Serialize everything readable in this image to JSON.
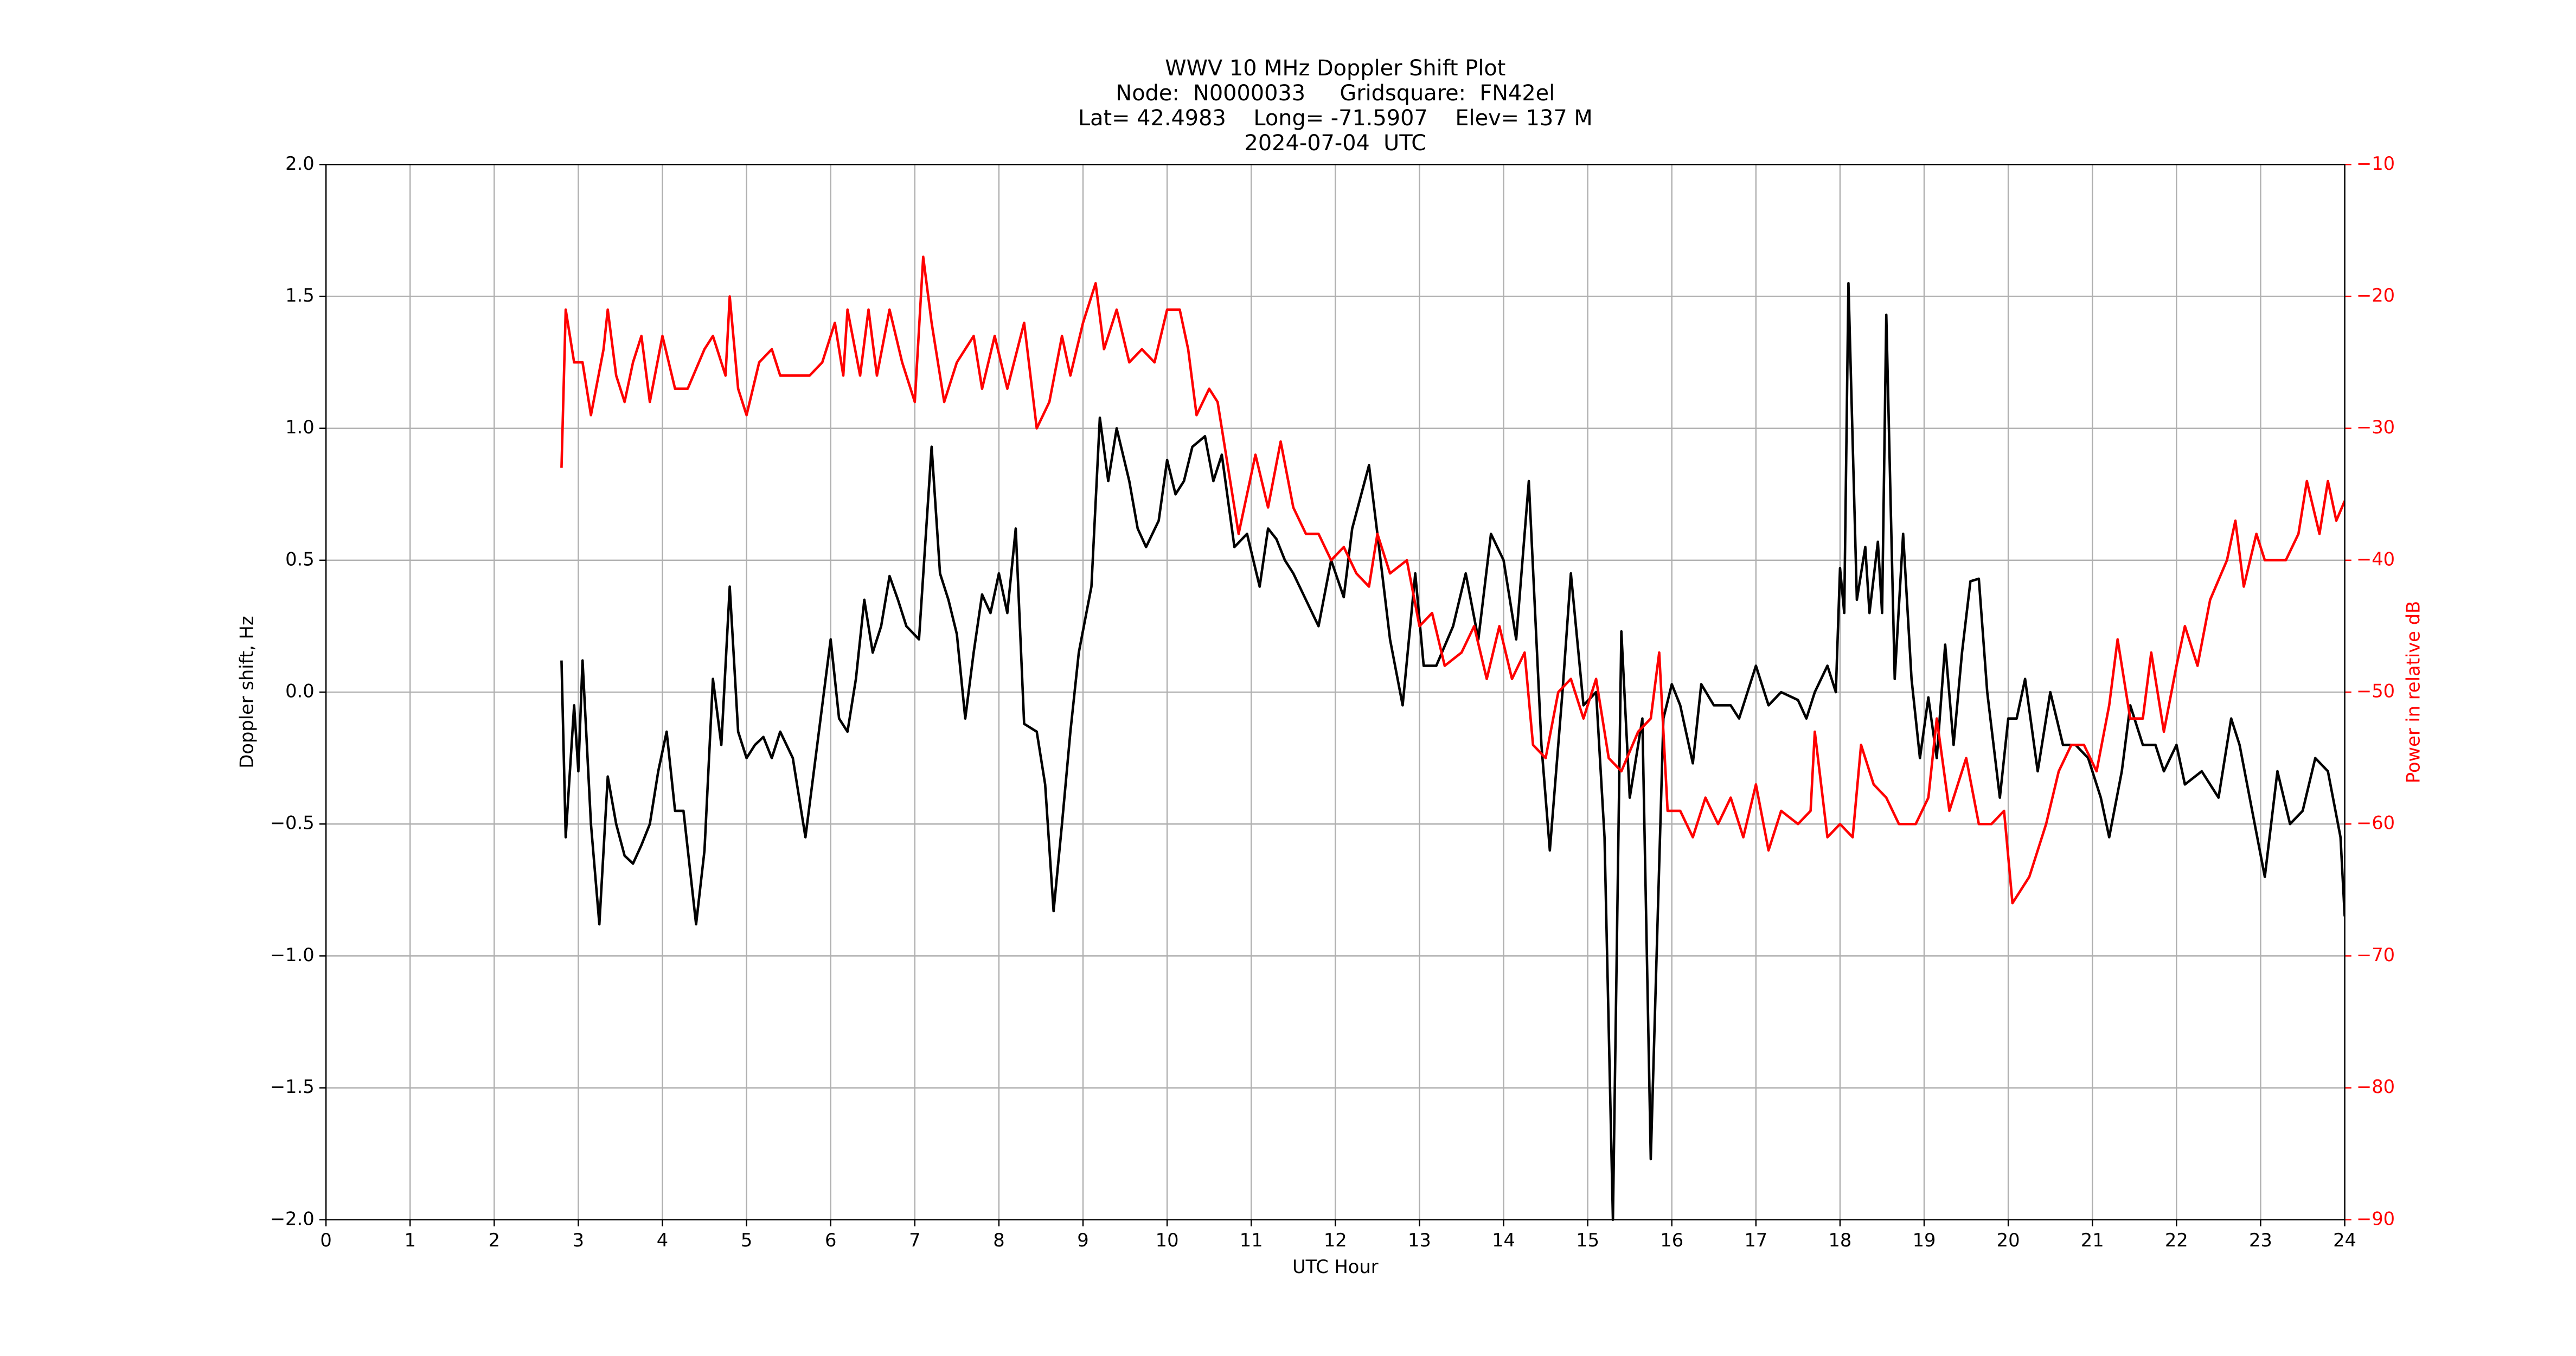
{
  "chart_data": {
    "type": "line",
    "title": [
      "WWV 10 MHz Doppler Shift Plot",
      "Node:  N0000033     Gridsquare:  FN42el",
      "Lat= 42.4983    Long= -71.5907    Elev= 137 M",
      "2024-07-04  UTC"
    ],
    "xlabel": "UTC Hour",
    "ylabel": "Doppler shift, Hz",
    "y2label": "Power in relative dB",
    "y2label_color": "#ff0000",
    "grid": true,
    "xlim": [
      0,
      24
    ],
    "xticks": [
      0,
      1,
      2,
      3,
      4,
      5,
      6,
      7,
      8,
      9,
      10,
      11,
      12,
      13,
      14,
      15,
      16,
      17,
      18,
      19,
      20,
      21,
      22,
      23,
      24
    ],
    "ylim": [
      -2,
      2
    ],
    "yticks": [
      {
        "value": -2,
        "label": "−2.0"
      },
      {
        "value": -1.5,
        "label": "−1.5"
      },
      {
        "value": -1,
        "label": "−1.0"
      },
      {
        "value": -0.5,
        "label": "−0.5"
      },
      {
        "value": 0,
        "label": "0.0"
      },
      {
        "value": 0.5,
        "label": "0.5"
      },
      {
        "value": 1,
        "label": "1.0"
      },
      {
        "value": 1.5,
        "label": "1.5"
      },
      {
        "value": 2,
        "label": "2.0"
      }
    ],
    "y2lim": [
      -90,
      -10
    ],
    "y2ticks": [
      {
        "value": -90,
        "label": "−90"
      },
      {
        "value": -80,
        "label": "−80"
      },
      {
        "value": -70,
        "label": "−70"
      },
      {
        "value": -60,
        "label": "−60"
      },
      {
        "value": -50,
        "label": "−50"
      },
      {
        "value": -40,
        "label": "−40"
      },
      {
        "value": -30,
        "label": "−30"
      },
      {
        "value": -20,
        "label": "−20"
      },
      {
        "value": -10,
        "label": "−10"
      }
    ],
    "series": [
      {
        "color": "#000000",
        "axis": "y",
        "x": [
          2.8,
          2.85,
          2.95,
          3.0,
          3.05,
          3.15,
          3.25,
          3.35,
          3.45,
          3.55,
          3.65,
          3.75,
          3.85,
          3.95,
          4.05,
          4.15,
          4.25,
          4.4,
          4.5,
          4.6,
          4.7,
          4.8,
          4.9,
          5.0,
          5.1,
          5.2,
          5.3,
          5.4,
          5.55,
          5.7,
          5.8,
          6.0,
          6.1,
          6.2,
          6.3,
          6.4,
          6.5,
          6.6,
          6.7,
          6.8,
          6.9,
          7.05,
          7.2,
          7.3,
          7.4,
          7.5,
          7.6,
          7.7,
          7.8,
          7.9,
          8.0,
          8.1,
          8.2,
          8.3,
          8.45,
          8.55,
          8.65,
          8.75,
          8.85,
          8.95,
          9.1,
          9.2,
          9.3,
          9.4,
          9.55,
          9.65,
          9.75,
          9.9,
          10.0,
          10.1,
          10.2,
          10.3,
          10.45,
          10.55,
          10.65,
          10.8,
          10.95,
          11.1,
          11.2,
          11.3,
          11.4,
          11.5,
          11.65,
          11.8,
          11.95,
          12.1,
          12.2,
          12.4,
          12.5,
          12.65,
          12.8,
          12.95,
          13.05,
          13.2,
          13.4,
          13.55,
          13.7,
          13.85,
          14.0,
          14.15,
          14.3,
          14.45,
          14.55,
          14.7,
          14.8,
          14.95,
          15.1,
          15.2,
          15.3,
          15.4,
          15.5,
          15.65,
          15.75,
          15.9,
          16.0,
          16.1,
          16.25,
          16.35,
          16.5,
          16.7,
          16.8,
          16.9,
          17.0,
          17.15,
          17.3,
          17.5,
          17.6,
          17.7,
          17.85,
          17.95,
          18.0,
          18.05,
          18.1,
          18.2,
          18.3,
          18.35,
          18.45,
          18.5,
          18.55,
          18.65,
          18.75,
          18.85,
          18.95,
          19.05,
          19.15,
          19.25,
          19.35,
          19.45,
          19.55,
          19.65,
          19.75,
          19.9,
          20.0,
          20.1,
          20.2,
          20.35,
          20.5,
          20.65,
          20.8,
          20.95,
          21.1,
          21.2,
          21.35,
          21.45,
          21.6,
          21.75,
          21.85,
          22.0,
          22.1,
          22.3,
          22.5,
          22.65,
          22.75,
          22.9,
          23.05,
          23.2,
          23.35,
          23.5,
          23.65,
          23.8,
          23.95,
          24.0
        ],
        "values": [
          0.12,
          -0.55,
          -0.05,
          -0.3,
          0.12,
          -0.5,
          -0.88,
          -0.32,
          -0.5,
          -0.62,
          -0.65,
          -0.58,
          -0.5,
          -0.3,
          -0.15,
          -0.45,
          -0.45,
          -0.88,
          -0.6,
          0.05,
          -0.2,
          0.4,
          -0.15,
          -0.25,
          -0.2,
          -0.17,
          -0.25,
          -0.15,
          -0.25,
          -0.55,
          -0.3,
          0.2,
          -0.1,
          -0.15,
          0.05,
          0.35,
          0.15,
          0.25,
          0.44,
          0.35,
          0.25,
          0.2,
          0.93,
          0.45,
          0.35,
          0.22,
          -0.1,
          0.15,
          0.37,
          0.3,
          0.45,
          0.3,
          0.62,
          -0.12,
          -0.15,
          -0.35,
          -0.83,
          -0.5,
          -0.15,
          0.15,
          0.4,
          1.04,
          0.8,
          1.0,
          0.8,
          0.62,
          0.55,
          0.65,
          0.88,
          0.75,
          0.8,
          0.93,
          0.97,
          0.8,
          0.9,
          0.55,
          0.6,
          0.4,
          0.62,
          0.58,
          0.5,
          0.45,
          0.35,
          0.25,
          0.5,
          0.36,
          0.62,
          0.86,
          0.6,
          0.2,
          -0.05,
          0.45,
          0.1,
          0.1,
          0.25,
          0.45,
          0.2,
          0.6,
          0.5,
          0.2,
          0.8,
          -0.2,
          -0.6,
          0.0,
          0.45,
          -0.05,
          0.0,
          -0.55,
          -2.0,
          0.23,
          -0.4,
          -0.1,
          -1.77,
          -0.1,
          0.03,
          -0.05,
          -0.27,
          0.03,
          -0.05,
          -0.05,
          -0.1,
          0.0,
          0.1,
          -0.05,
          0.0,
          -0.03,
          -0.1,
          0.0,
          0.1,
          0.0,
          0.47,
          0.3,
          1.55,
          0.35,
          0.55,
          0.3,
          0.57,
          0.3,
          1.43,
          0.05,
          0.6,
          0.05,
          -0.25,
          -0.02,
          -0.25,
          0.18,
          -0.2,
          0.15,
          0.42,
          0.43,
          0.0,
          -0.4,
          -0.1,
          -0.1,
          0.05,
          -0.3,
          0.0,
          -0.2,
          -0.2,
          -0.25,
          -0.4,
          -0.55,
          -0.3,
          -0.05,
          -0.2,
          -0.2,
          -0.3,
          -0.2,
          -0.35,
          -0.3,
          -0.4,
          -0.1,
          -0.2,
          -0.45,
          -0.7,
          -0.3,
          -0.5,
          -0.45,
          -0.25,
          -0.3,
          -0.55,
          -0.85
        ]
      },
      {
        "color": "#ff0000",
        "axis": "y2",
        "x": [
          2.8,
          2.85,
          2.95,
          3.05,
          3.15,
          3.3,
          3.35,
          3.45,
          3.55,
          3.65,
          3.75,
          3.85,
          4.0,
          4.15,
          4.3,
          4.5,
          4.6,
          4.75,
          4.8,
          4.9,
          5.0,
          5.15,
          5.3,
          5.4,
          5.55,
          5.75,
          5.9,
          6.05,
          6.15,
          6.2,
          6.35,
          6.45,
          6.55,
          6.7,
          6.85,
          7.0,
          7.1,
          7.2,
          7.35,
          7.5,
          7.7,
          7.8,
          7.95,
          8.1,
          8.3,
          8.45,
          8.6,
          8.75,
          8.85,
          9.0,
          9.15,
          9.25,
          9.4,
          9.55,
          9.7,
          9.85,
          10.0,
          10.15,
          10.25,
          10.35,
          10.5,
          10.6,
          10.75,
          10.85,
          11.05,
          11.2,
          11.35,
          11.5,
          11.65,
          11.8,
          11.95,
          12.1,
          12.25,
          12.4,
          12.5,
          12.65,
          12.85,
          13.0,
          13.15,
          13.3,
          13.5,
          13.65,
          13.8,
          13.95,
          14.1,
          14.25,
          14.35,
          14.5,
          14.65,
          14.8,
          14.95,
          15.1,
          15.25,
          15.4,
          15.6,
          15.75,
          15.85,
          15.95,
          16.1,
          16.25,
          16.4,
          16.55,
          16.7,
          16.85,
          17.0,
          17.15,
          17.3,
          17.5,
          17.65,
          17.7,
          17.85,
          18.0,
          18.15,
          18.25,
          18.4,
          18.55,
          18.7,
          18.9,
          19.05,
          19.15,
          19.3,
          19.5,
          19.65,
          19.8,
          19.95,
          20.05,
          20.25,
          20.45,
          20.6,
          20.75,
          20.9,
          21.05,
          21.2,
          21.3,
          21.45,
          21.6,
          21.7,
          21.85,
          22.0,
          22.1,
          22.25,
          22.4,
          22.6,
          22.7,
          22.8,
          22.95,
          23.05,
          23.3,
          23.45,
          23.55,
          23.7,
          23.8,
          23.9,
          24.0
        ],
        "values": [
          -33,
          -21,
          -25,
          -25,
          -29,
          -24,
          -21,
          -26,
          -28,
          -25,
          -23,
          -28,
          -23,
          -27,
          -27,
          -24,
          -23,
          -26,
          -20,
          -27,
          -29,
          -25,
          -24,
          -26,
          -26,
          -26,
          -25,
          -22,
          -26,
          -21,
          -26,
          -21,
          -26,
          -21,
          -25,
          -28,
          -17,
          -22,
          -28,
          -25,
          -23,
          -27,
          -23,
          -27,
          -22,
          -30,
          -28,
          -23,
          -26,
          -22,
          -19,
          -24,
          -21,
          -25,
          -24,
          -25,
          -21,
          -21,
          -24,
          -29,
          -27,
          -28,
          -34,
          -38,
          -32,
          -36,
          -31,
          -36,
          -38,
          -38,
          -40,
          -39,
          -41,
          -42,
          -38,
          -41,
          -40,
          -45,
          -44,
          -48,
          -47,
          -45,
          -49,
          -45,
          -49,
          -47,
          -54,
          -55,
          -50,
          -49,
          -52,
          -49,
          -55,
          -56,
          -53,
          -52,
          -47,
          -59,
          -59,
          -61,
          -58,
          -60,
          -58,
          -61,
          -57,
          -62,
          -59,
          -60,
          -59,
          -53,
          -61,
          -60,
          -61,
          -54,
          -57,
          -58,
          -60,
          -60,
          -58,
          -52,
          -59,
          -55,
          -60,
          -60,
          -59,
          -66,
          -64,
          -60,
          -56,
          -54,
          -54,
          -56,
          -51,
          -46,
          -52,
          -52,
          -47,
          -53,
          -48,
          -45,
          -48,
          -43,
          -40,
          -37,
          -42,
          -38,
          -40,
          -40,
          -38,
          -34,
          -38,
          -34,
          -37,
          -35.5
        ]
      }
    ]
  }
}
